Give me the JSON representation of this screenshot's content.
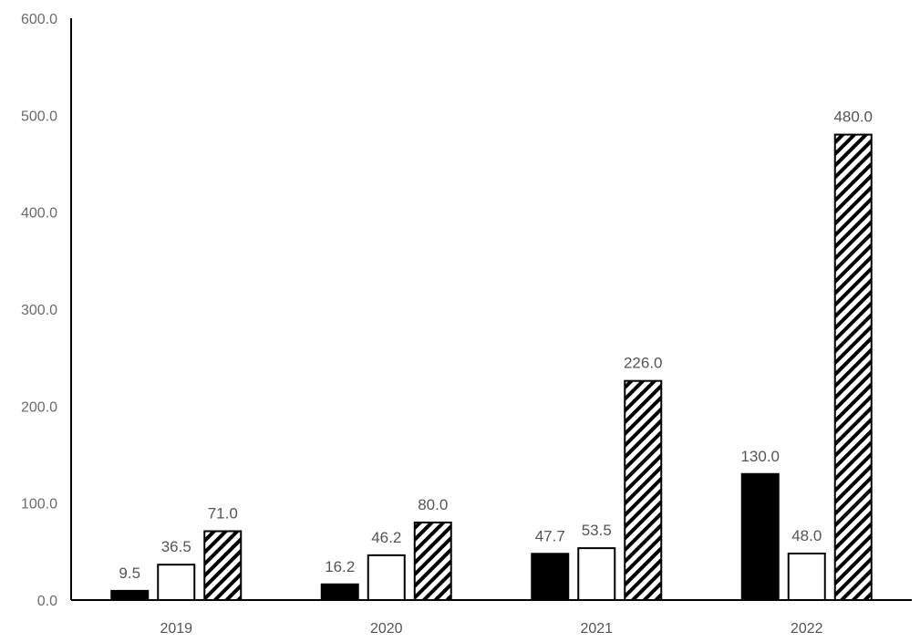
{
  "chart_data": {
    "type": "bar",
    "categories": [
      "2019",
      "2020",
      "2021",
      "2022"
    ],
    "series": [
      {
        "fill": "solid-black",
        "values": [
          9.5,
          16.2,
          47.7,
          130.0
        ]
      },
      {
        "fill": "white",
        "values": [
          36.5,
          46.2,
          53.5,
          48.0
        ]
      },
      {
        "fill": "diagonal-hatch",
        "values": [
          71.0,
          80.0,
          226.0,
          480.0
        ]
      }
    ],
    "data_labels": [
      [
        "9.5",
        "16.2",
        "47.7",
        "130.0"
      ],
      [
        "36.5",
        "46.2",
        "53.5",
        "48.0"
      ],
      [
        "71.0",
        "80.0",
        "226.0",
        "480.0"
      ]
    ],
    "y_ticks": [
      "0.0",
      "100.0",
      "200.0",
      "300.0",
      "400.0",
      "500.0",
      "600.0"
    ],
    "ylim": [
      0,
      600
    ],
    "title": "",
    "xlabel": "",
    "ylabel": "",
    "grid": false,
    "colors": {
      "axis": "#000000",
      "bar_outline": "#000000",
      "solid": "#000000",
      "white": "#ffffff",
      "text": "#555555"
    }
  }
}
